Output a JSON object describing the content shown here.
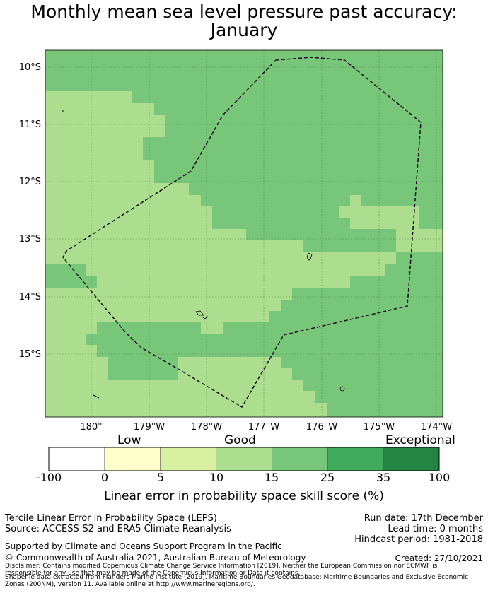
{
  "title_line1": "Monthly mean sea level pressure past accuracy:",
  "title_line2": "January",
  "map": {
    "lat_labels": [
      "10°S",
      "11°S",
      "12°S",
      "13°S",
      "14°S",
      "15°S"
    ],
    "lon_labels": [
      "180°",
      "179°W",
      "178°W",
      "177°W",
      "176°W",
      "175°W",
      "174°W"
    ]
  },
  "colorbar": {
    "categories": [
      "Low",
      "Good",
      "Exceptional"
    ],
    "ticks": [
      "-100",
      "0",
      "5",
      "10",
      "15",
      "25",
      "35",
      "100"
    ],
    "colors": [
      "#ffffff",
      "#ffffcc",
      "#d9f0a3",
      "#addd8e",
      "#78c679",
      "#41ab5d",
      "#238443"
    ],
    "label": "Linear error in probability space skill score (%)"
  },
  "footer": {
    "method": "Tercile Linear Error in Probability Space (LEPS)",
    "source": "Source: ACCESS-S2 and ERA5 Climate Reanalysis",
    "run_date": "Run date: 17th December",
    "lead_time": "Lead time: 0 months",
    "hindcast": "Hindcast period: 1981-2018",
    "support": "Supported by Climate and Oceans Support Program in the Pacific",
    "copyright": "© Commonwealth of Australia 2021, Australian Bureau of Meteorology",
    "created": "Created: 27/10/2021",
    "disclaimer1": "Disclaimer: Contains modified Copernicus Climate Change Service Information [2019]. Neither the European Commission nor ECMWF is",
    "disclaimer2": "responsible for any use that may be made of the Copernicus Information or Data it contains.",
    "disclaimer3": "Shapefile data extracted from Flanders Marine Institute (2019). Maritime Boundaries Geodatabase: Maritime Boundaries and Exclusive Economic",
    "disclaimer4": "Zones (200NM), version 11. Available online at http://www.marineregions.org/."
  }
}
